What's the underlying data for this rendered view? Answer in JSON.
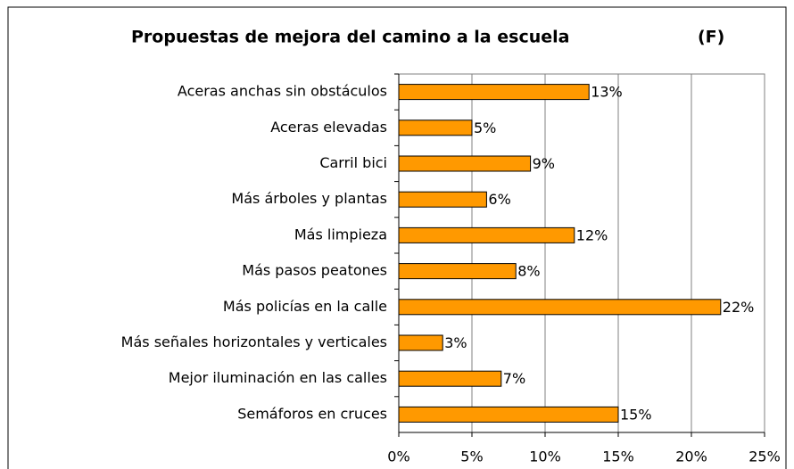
{
  "chart_data": {
    "type": "bar",
    "orientation": "horizontal",
    "title": "Propuestas de mejora del camino a la escuela",
    "annotation": "(F)",
    "categories": [
      "Aceras anchas sin obstáculos",
      "Aceras elevadas",
      "Carril bici",
      "Más árboles y plantas",
      "Más limpieza",
      "Más pasos peatones",
      "Más policías en la calle",
      "Más señales horizontales y verticales",
      "Mejor iluminación en las calles",
      "Semáforos en cruces"
    ],
    "values": [
      13,
      5,
      9,
      6,
      12,
      8,
      22,
      3,
      7,
      15
    ],
    "value_labels": [
      "13%",
      "5%",
      "9%",
      "6%",
      "12%",
      "8%",
      "22%",
      "3%",
      "7%",
      "15%"
    ],
    "color": "#ff9900",
    "xlim": [
      0,
      25
    ],
    "xticks": [
      {
        "value": 0,
        "label": "0%"
      },
      {
        "value": 5,
        "label": "5%"
      },
      {
        "value": 10,
        "label": "10%"
      },
      {
        "value": 15,
        "label": "15%"
      },
      {
        "value": 20,
        "label": "20%"
      },
      {
        "value": 25,
        "label": "25%"
      }
    ],
    "grid": true
  }
}
